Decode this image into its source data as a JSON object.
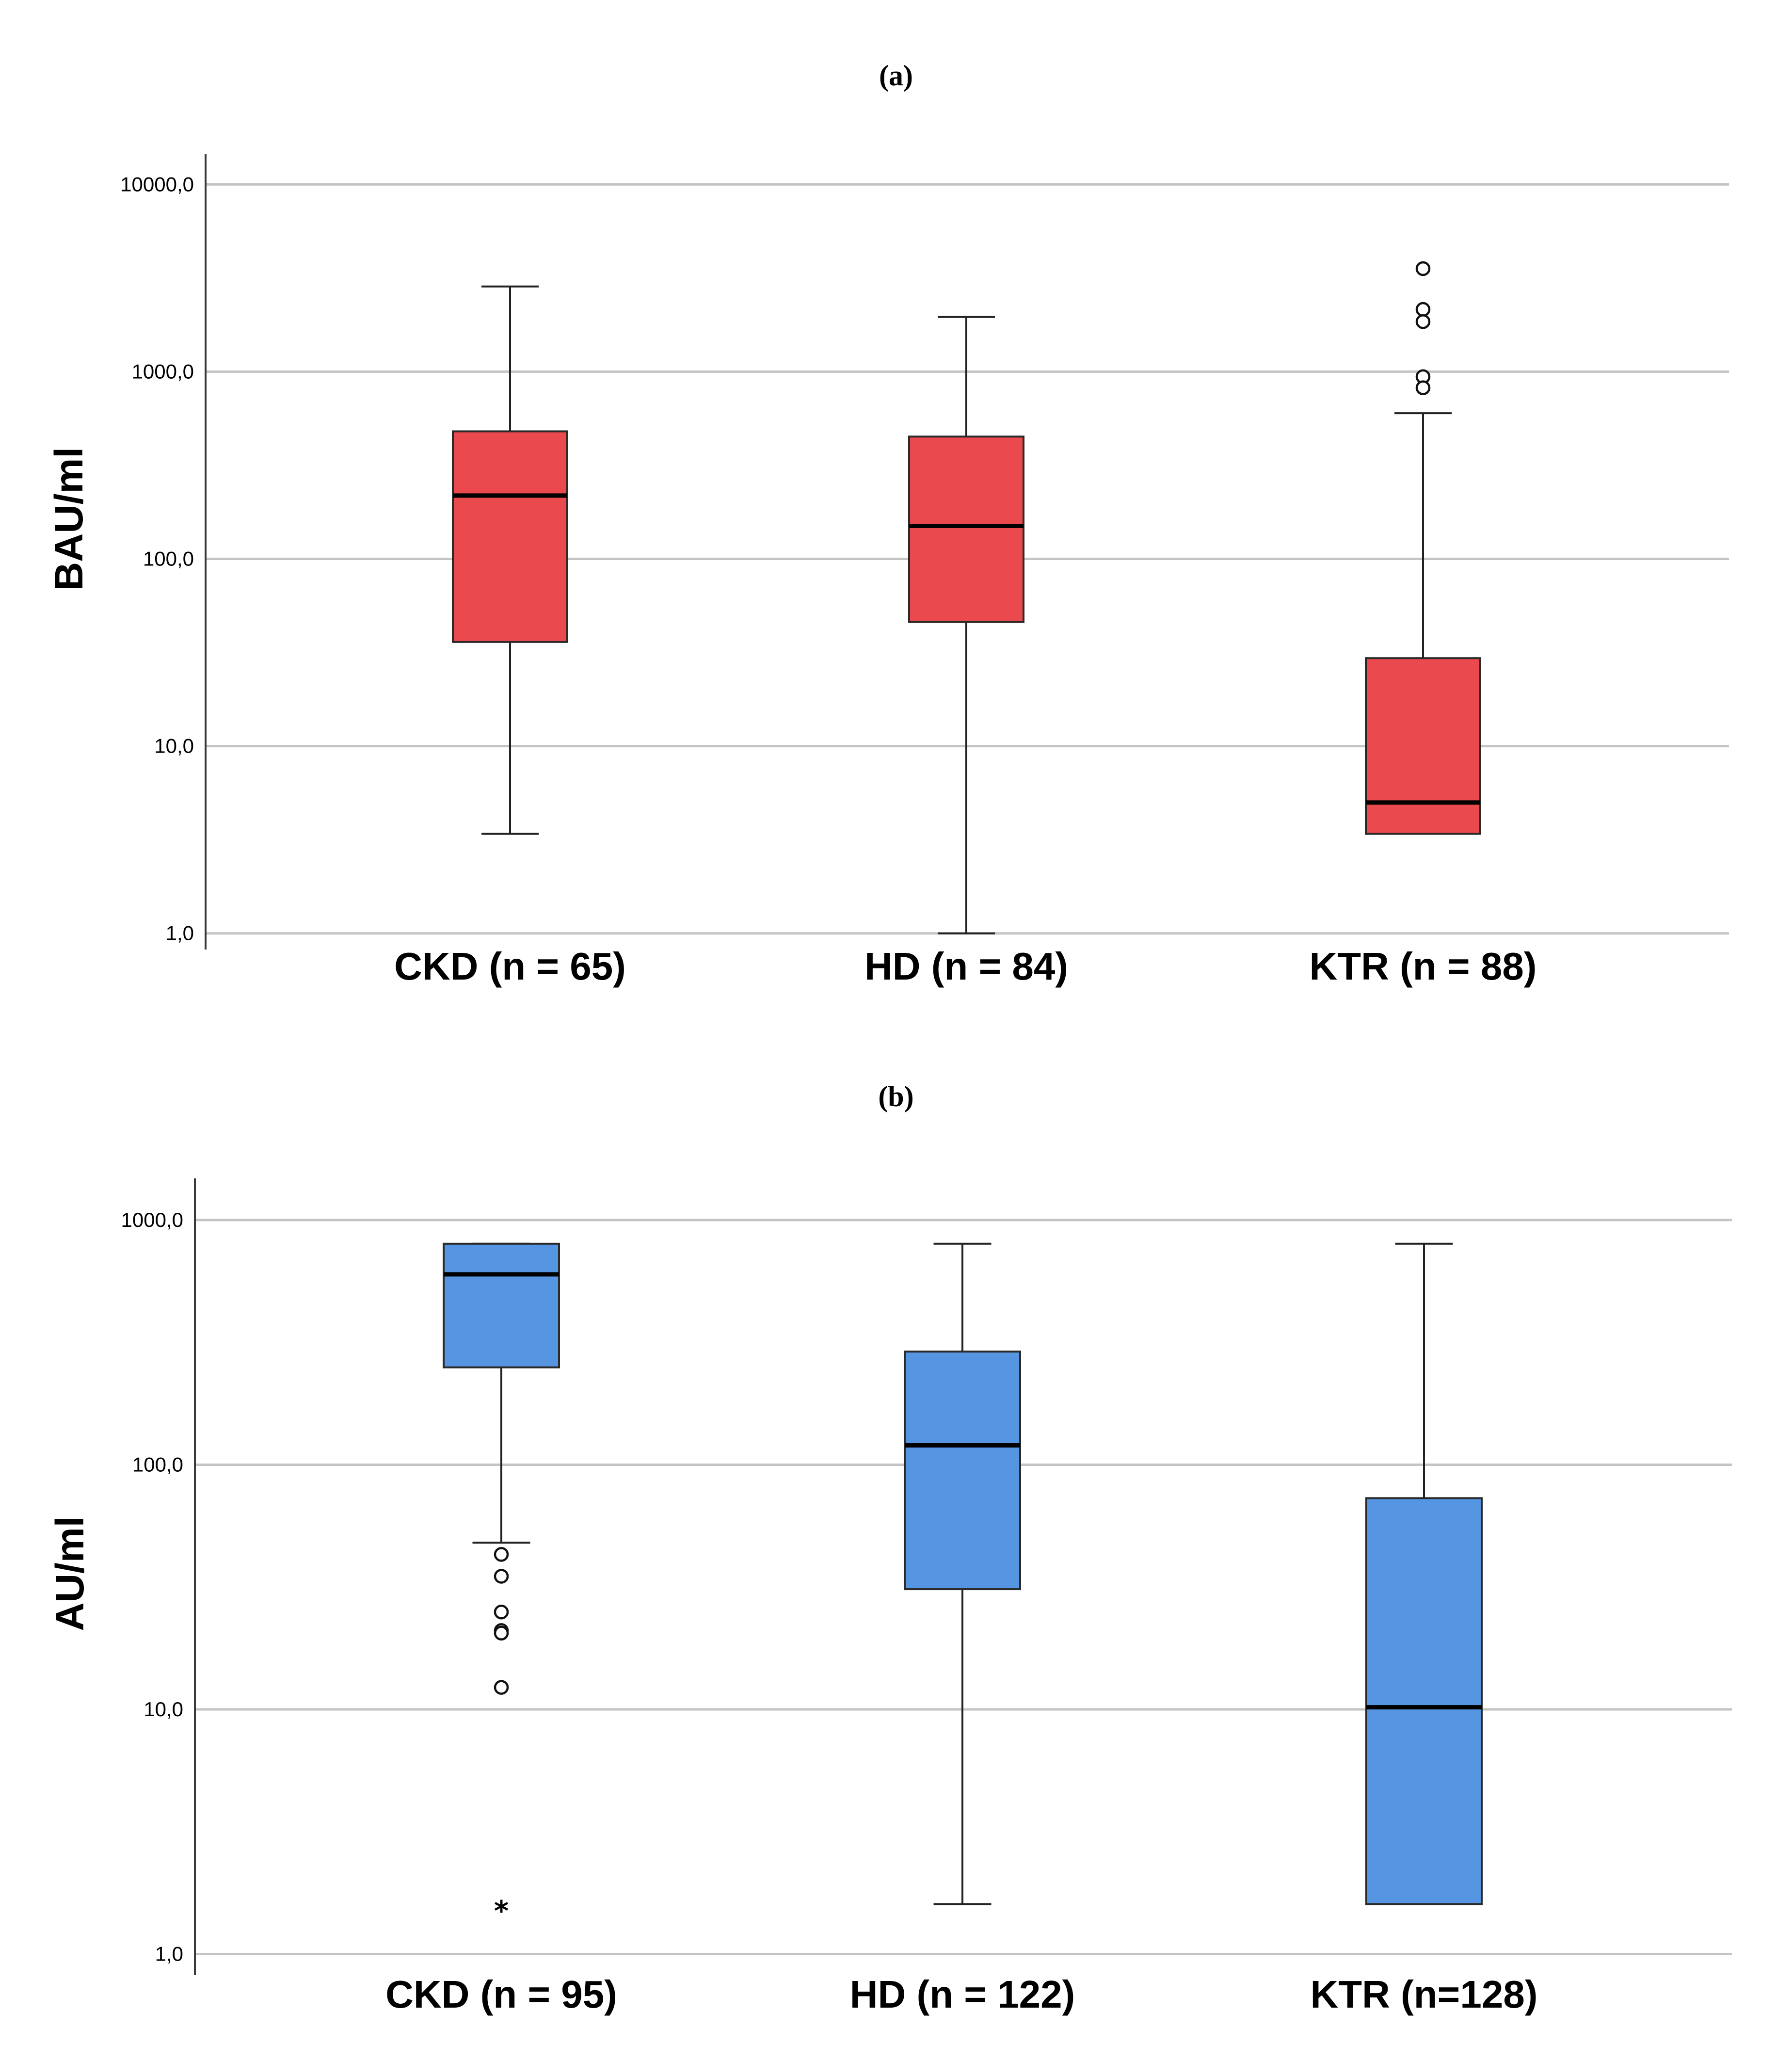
{
  "chart_data": [
    {
      "panel_label": "(a)",
      "type": "boxplot",
      "ylabel": "BAU/ml",
      "yscale": "log",
      "ylim": [
        0.82,
        14500
      ],
      "yticks": [
        1,
        10,
        100,
        1000,
        10000
      ],
      "ytick_labels": [
        "1,0",
        "10,0",
        "100,0",
        "1000,0",
        "10000,0"
      ],
      "grid": true,
      "box_color": "#ea4a4d",
      "groups": [
        {
          "label": "CKD (n = 65)",
          "whisker_low": 3.4,
          "q1": 36,
          "median": 218,
          "q3": 480,
          "whisker_high": 2850,
          "outliers": [],
          "extremes": []
        },
        {
          "label": "HD (n = 84)",
          "whisker_low": 1.0,
          "q1": 46,
          "median": 150,
          "q3": 450,
          "whisker_high": 1960,
          "outliers": [],
          "extremes": []
        },
        {
          "label": "KTR (n = 88)",
          "whisker_low": 3.4,
          "q1": 3.4,
          "median": 5.0,
          "q3": 29.5,
          "whisker_high": 600,
          "outliers": [
            3550,
            2150,
            1850,
            940,
            820
          ],
          "extremes": []
        }
      ]
    },
    {
      "panel_label": "(b)",
      "type": "boxplot",
      "ylabel": "AU/ml",
      "yscale": "log",
      "ylim": [
        0.82,
        1480
      ],
      "yticks": [
        1,
        10,
        100,
        1000
      ],
      "ytick_labels": [
        "1,0",
        "10,0",
        "100,0",
        "1000,0"
      ],
      "grid": true,
      "box_color": "#5695e2",
      "groups": [
        {
          "label": "CKD (n = 95)",
          "whisker_low": 48,
          "q1": 250,
          "median": 600,
          "q3": 800,
          "whisker_high": 800,
          "outliers": [
            43,
            35,
            25,
            21,
            20.5,
            12.3
          ],
          "extremes": [
            1.6
          ]
        },
        {
          "label": "HD (n = 122)",
          "whisker_low": 1.6,
          "q1": 31,
          "median": 120,
          "q3": 290,
          "whisker_high": 800,
          "outliers": [],
          "extremes": []
        },
        {
          "label": "KTR (n=128)",
          "whisker_low": 1.6,
          "q1": 1.6,
          "median": 10.2,
          "q3": 73,
          "whisker_high": 800,
          "outliers": [],
          "extremes": []
        }
      ]
    }
  ]
}
